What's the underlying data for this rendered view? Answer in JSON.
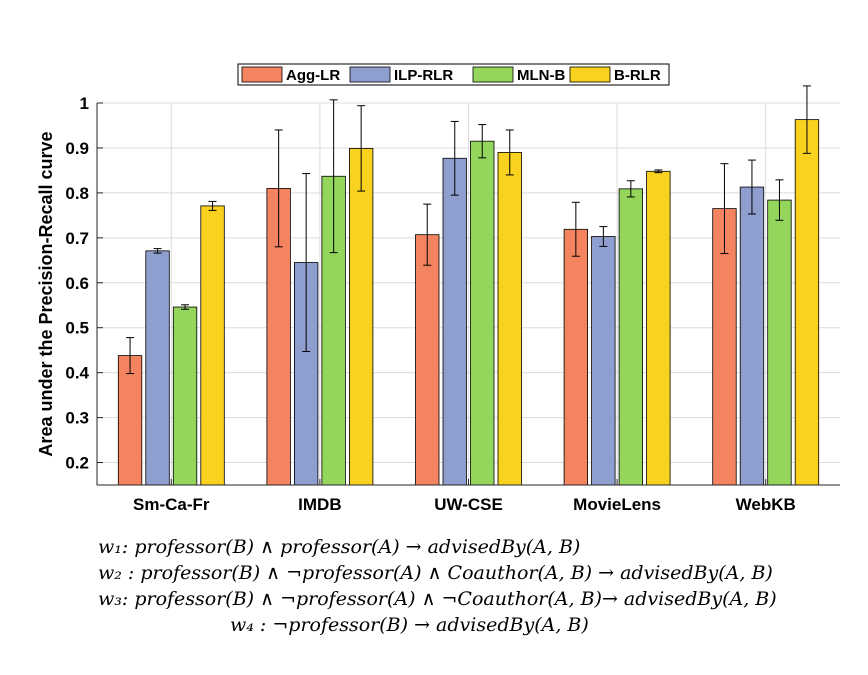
{
  "chart_data": {
    "type": "bar",
    "xlabel": "",
    "ylabel": "Area under the Precision-Recall curve",
    "ylim": [
      0.15,
      1.0
    ],
    "yticks": [
      0.2,
      0.3,
      0.4,
      0.5,
      0.6,
      0.7,
      0.8,
      0.9,
      1.0
    ],
    "ytick_labels": [
      "0.2",
      "0.3",
      "0.4",
      "0.5",
      "0.6",
      "0.7",
      "0.8",
      "0.9",
      "1"
    ],
    "grid": true,
    "legend_position": "top-center",
    "categories": [
      "Sm-Ca-Fr",
      "IMDB",
      "UW-CSE",
      "MovieLens",
      "WebKB"
    ],
    "series": [
      {
        "name": "Agg-LR",
        "color": "#f4845f",
        "values": [
          0.438,
          0.81,
          0.707,
          0.719,
          0.765
        ],
        "errors": [
          0.04,
          0.13,
          0.068,
          0.06,
          0.1
        ]
      },
      {
        "name": "ILP-RLR",
        "color": "#8e9ecf",
        "values": [
          0.671,
          0.645,
          0.877,
          0.703,
          0.813
        ],
        "errors": [
          0.005,
          0.198,
          0.082,
          0.022,
          0.06
        ]
      },
      {
        "name": "MLN-B",
        "color": "#93d65b",
        "values": [
          0.546,
          0.837,
          0.915,
          0.809,
          0.784
        ],
        "errors": [
          0.005,
          0.17,
          0.037,
          0.018,
          0.045
        ]
      },
      {
        "name": "B-RLR",
        "color": "#f9d11f",
        "values": [
          0.771,
          0.899,
          0.89,
          0.848,
          0.963
        ],
        "errors": [
          0.01,
          0.095,
          0.05,
          0.003,
          0.075
        ]
      }
    ]
  },
  "formulas": [
    "w₁:  professor(B)  ∧  professor(A) → advisedBy(A, B)",
    "w₂ : professor(B) ∧ ¬professor(A)  ∧ Coauthor(A, B) → advisedBy(A, B)",
    "w₃: professor(B) ∧ ¬professor(A)  ∧ ¬Coauthor(A, B)→ advisedBy(A, B)",
    "w₄ : ¬professor(B) → advisedBy(A, B)"
  ]
}
